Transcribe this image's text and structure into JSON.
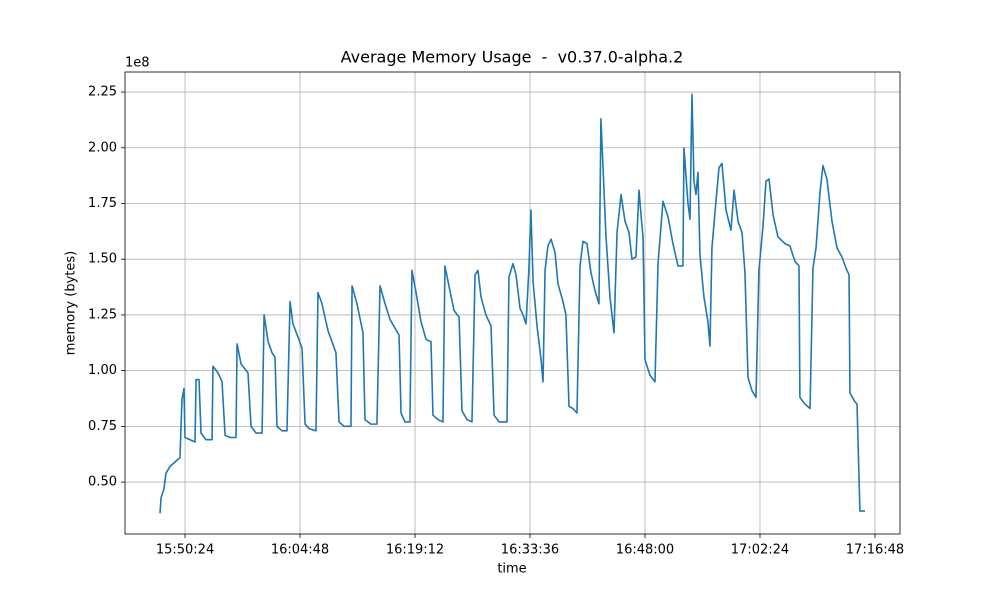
{
  "chart_data": {
    "type": "line",
    "title": "Average Memory Usage  -  v0.37.0-alpha.2",
    "xlabel": "time",
    "ylabel": "memory (bytes)",
    "y_offset_label": "1e8",
    "color": "#1f77b4",
    "grid": true,
    "xlim": [
      "15:42:53",
      "17:19:56"
    ],
    "xticks": [
      "15:50:24",
      "16:04:48",
      "16:19:12",
      "16:33:36",
      "16:48:00",
      "17:02:24",
      "17:16:48"
    ],
    "ylim": [
      0.267,
      2.34
    ],
    "yticks": [
      {
        "value": 0.5,
        "label": "0.50"
      },
      0.75,
      {
        "value": 1.0,
        "label": "1.00"
      },
      1.25,
      {
        "value": 1.5,
        "label": "1.50"
      },
      1.75,
      {
        "value": 2.0,
        "label": "2.00"
      },
      2.25
    ],
    "x": [
      "15:47:16",
      "15:47:24",
      "15:47:46",
      "15:48:01",
      "15:48:31",
      "15:49:09",
      "15:49:46",
      "15:50:01",
      "15:50:16",
      "15:50:24",
      "15:51:02",
      "15:51:39",
      "15:51:47",
      "15:52:09",
      "15:52:24",
      "15:53:02",
      "15:53:47",
      "15:53:54",
      "15:54:32",
      "15:55:02",
      "15:55:25",
      "15:56:02",
      "15:56:47",
      "15:56:55",
      "15:57:25",
      "15:58:17",
      "15:58:40",
      "15:59:17",
      "16:00:03",
      "16:00:18",
      "16:00:48",
      "16:01:18",
      "16:01:40",
      "16:01:55",
      "16:02:33",
      "16:03:10",
      "16:03:33",
      "16:03:55",
      "16:04:33",
      "16:05:03",
      "16:05:26",
      "16:05:56",
      "16:06:48",
      "16:07:03",
      "16:07:33",
      "16:08:18",
      "16:09:18",
      "16:09:41",
      "16:10:19",
      "16:11:11",
      "16:11:19",
      "16:11:56",
      "16:12:41",
      "16:12:56",
      "16:13:41",
      "16:14:26",
      "16:14:49",
      "16:15:27",
      "16:16:04",
      "16:16:42",
      "16:17:12",
      "16:17:27",
      "16:17:57",
      "16:18:34",
      "16:18:49",
      "16:19:20",
      "16:19:57",
      "16:20:35",
      "16:21:12",
      "16:21:27",
      "16:22:05",
      "16:22:42",
      "16:22:57",
      "16:23:27",
      "16:24:05",
      "16:24:43",
      "16:25:05",
      "16:25:43",
      "16:26:20",
      "16:26:43",
      "16:27:05",
      "16:27:28",
      "16:28:05",
      "16:28:43",
      "16:29:06",
      "16:29:43",
      "16:30:21",
      "16:30:43",
      "16:30:58",
      "16:31:28",
      "16:31:51",
      "16:32:21",
      "16:32:43",
      "16:33:06",
      "16:33:28",
      "16:33:43",
      "16:33:59",
      "16:34:29",
      "16:34:59",
      "16:35:14",
      "16:35:29",
      "16:35:51",
      "16:36:14",
      "16:36:44",
      "16:37:06",
      "16:37:44",
      "16:38:06",
      "16:38:29",
      "16:38:59",
      "16:39:29",
      "16:39:52",
      "16:40:14",
      "16:40:44",
      "16:41:14",
      "16:41:44",
      "16:42:14",
      "16:42:29",
      "16:42:44",
      "16:43:07",
      "16:43:37",
      "16:44:07",
      "16:44:30",
      "16:45:00",
      "16:45:30",
      "16:46:00",
      "16:46:22",
      "16:46:52",
      "16:47:15",
      "16:47:30",
      "16:47:45",
      "16:48:00",
      "16:48:37",
      "16:49:15",
      "16:49:38",
      "16:50:15",
      "16:50:53",
      "16:51:30",
      "16:52:08",
      "16:52:45",
      "16:52:53",
      "16:53:23",
      "16:53:38",
      "16:53:53",
      "16:54:08",
      "16:54:23",
      "16:54:38",
      "16:54:53",
      "16:55:23",
      "16:55:53",
      "16:56:08",
      "16:56:23",
      "16:56:53",
      "16:57:16",
      "16:57:38",
      "16:58:09",
      "16:58:46",
      "16:59:09",
      "16:59:39",
      "17:00:09",
      "17:00:31",
      "17:00:54",
      "17:01:24",
      "17:01:54",
      "17:02:16",
      "17:02:47",
      "17:03:09",
      "17:03:32",
      "17:04:02",
      "17:04:39",
      "17:05:32",
      "17:06:09",
      "17:06:47",
      "17:07:17",
      "17:07:24",
      "17:08:02",
      "17:08:40",
      "17:09:02",
      "17:09:25",
      "17:09:55",
      "17:10:17",
      "17:10:47",
      "17:11:25",
      "17:12:03",
      "17:12:40",
      "17:13:10",
      "17:13:33",
      "17:13:40",
      "17:14:18",
      "17:14:33",
      "17:14:55",
      "17:15:33"
    ],
    "values": [
      0.36,
      0.43,
      0.47,
      0.54,
      0.57,
      0.59,
      0.61,
      0.87,
      0.92,
      0.7,
      0.69,
      0.68,
      0.96,
      0.96,
      0.72,
      0.69,
      0.69,
      1.02,
      0.99,
      0.95,
      0.71,
      0.7,
      0.7,
      1.12,
      1.03,
      0.99,
      0.75,
      0.72,
      0.72,
      1.25,
      1.13,
      1.08,
      1.06,
      0.75,
      0.73,
      0.73,
      1.31,
      1.21,
      1.15,
      1.1,
      0.76,
      0.74,
      0.73,
      1.35,
      1.3,
      1.18,
      1.08,
      0.77,
      0.75,
      0.75,
      1.38,
      1.3,
      1.17,
      0.78,
      0.76,
      0.76,
      1.38,
      1.3,
      1.23,
      1.19,
      1.16,
      0.81,
      0.77,
      0.77,
      1.45,
      1.35,
      1.22,
      1.14,
      1.13,
      0.8,
      0.78,
      0.77,
      1.47,
      1.38,
      1.27,
      1.24,
      0.82,
      0.78,
      0.77,
      1.43,
      1.45,
      1.33,
      1.25,
      1.2,
      0.8,
      0.77,
      0.77,
      0.77,
      1.42,
      1.48,
      1.43,
      1.28,
      1.25,
      1.21,
      1.46,
      1.72,
      1.4,
      1.2,
      1.05,
      0.95,
      1.45,
      1.56,
      1.59,
      1.53,
      1.39,
      1.31,
      1.25,
      0.84,
      0.83,
      0.81,
      1.47,
      1.58,
      1.57,
      1.44,
      1.36,
      1.3,
      2.13,
      1.92,
      1.6,
      1.33,
      1.17,
      1.62,
      1.79,
      1.67,
      1.62,
      1.5,
      1.51,
      1.81,
      1.7,
      1.6,
      1.05,
      0.98,
      0.95,
      1.48,
      1.76,
      1.69,
      1.57,
      1.47,
      1.47,
      2.0,
      1.75,
      1.68,
      2.24,
      1.85,
      1.79,
      1.89,
      1.52,
      1.33,
      1.22,
      1.11,
      1.55,
      1.76,
      1.91,
      1.93,
      1.72,
      1.63,
      1.81,
      1.67,
      1.62,
      1.44,
      0.97,
      0.91,
      0.88,
      1.45,
      1.65,
      1.85,
      1.86,
      1.7,
      1.6,
      1.57,
      1.56,
      1.49,
      1.47,
      0.88,
      0.85,
      0.83,
      1.46,
      1.55,
      1.8,
      1.92,
      1.86,
      1.67,
      1.55,
      1.51,
      1.46,
      1.43,
      0.9,
      0.86,
      0.85,
      0.37,
      0.37
    ]
  }
}
